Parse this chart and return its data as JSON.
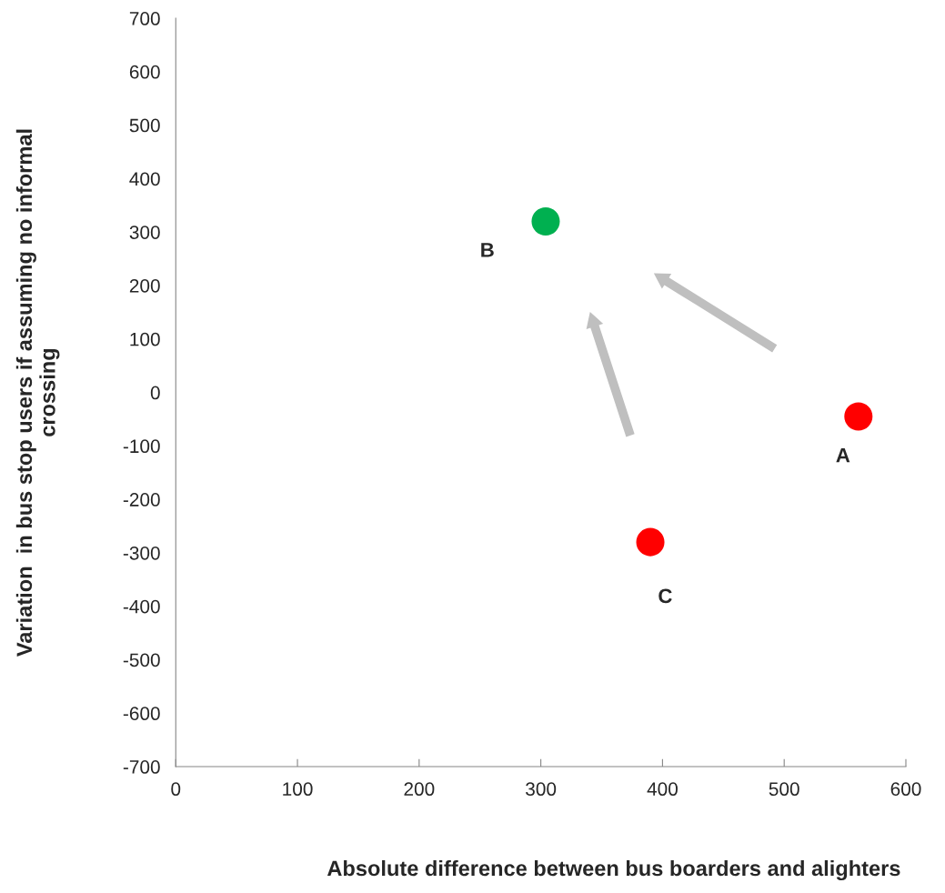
{
  "chart_data": {
    "type": "scatter",
    "xlabel": "Absolute difference between bus boarders and alighters",
    "ylabel": "Variation  in bus stop users if assuming no informal\ncrossing",
    "x": [
      561,
      304,
      390
    ],
    "values": [
      -45,
      320,
      -280
    ],
    "colors": [
      "#ff0000",
      "#00b050",
      "#ff0000"
    ],
    "marker": "circle",
    "annotations": [
      {
        "text": "A",
        "x": 561,
        "y": -45
      },
      {
        "text": "B",
        "x": 304,
        "y": 320
      },
      {
        "text": "C",
        "x": 390,
        "y": -280
      }
    ],
    "xlim": [
      0,
      600
    ],
    "xticks": [
      0,
      100,
      200,
      300,
      400,
      500,
      600
    ],
    "ylim": [
      -700,
      700
    ],
    "yticks": [
      -700,
      -600,
      -500,
      -400,
      -300,
      -200,
      -100,
      0,
      100,
      200,
      300,
      400,
      500,
      600,
      700
    ],
    "grid": false,
    "legend": false
  }
}
